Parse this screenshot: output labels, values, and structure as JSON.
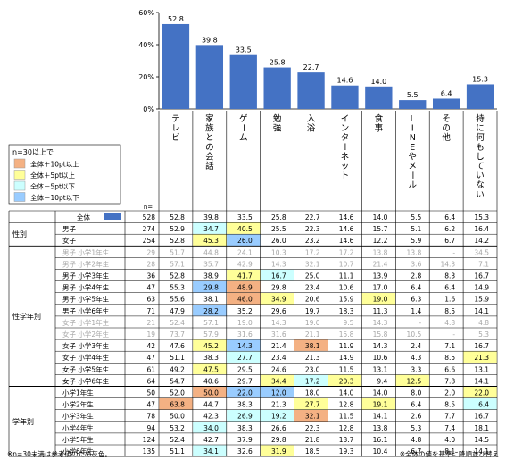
{
  "chart_data": {
    "type": "bar",
    "categories": [
      "テレビ",
      "家族との会話",
      "ゲーム",
      "勉強",
      "入浴",
      "インターネット",
      "食事",
      "LINEやメール",
      "その他",
      "特に何もしていない"
    ],
    "values": [
      52.8,
      39.8,
      33.5,
      25.8,
      22.7,
      14.6,
      14.0,
      5.5,
      6.4,
      15.3
    ],
    "ylim": [
      0,
      60
    ],
    "yticks": [
      "0%",
      "20%",
      "40%",
      "60%"
    ],
    "bar_color": "#4472C4",
    "n_label": "n=",
    "legend": {
      "title": "n=30以上で",
      "items": [
        {
          "label": "全体＋10pt以上",
          "color": "#F4B183"
        },
        {
          "label": "全体＋5pt以上",
          "color": "#FFFF99"
        },
        {
          "label": "全体－5pt以下",
          "color": "#CCFFFF"
        },
        {
          "label": "全体－10pt以下",
          "color": "#99CCFF"
        }
      ]
    },
    "table": [
      {
        "group": "",
        "label": "全体",
        "n": "528",
        "values": [
          "52.8",
          "39.8",
          "33.5",
          "25.8",
          "22.7",
          "14.6",
          "14.0",
          "5.5",
          "6.4",
          "15.3"
        ],
        "hl": [
          0,
          0,
          0,
          0,
          0,
          0,
          0,
          0,
          0,
          0
        ],
        "gray": false,
        "total": true
      },
      {
        "group": "性別",
        "label": "男子",
        "n": "274",
        "values": [
          "52.9",
          "34.7",
          "40.5",
          "25.5",
          "22.3",
          "14.6",
          "15.7",
          "5.1",
          "6.2",
          "16.4"
        ],
        "hl": [
          0,
          3,
          2,
          0,
          0,
          0,
          0,
          0,
          0,
          0
        ],
        "gray": false
      },
      {
        "group": "",
        "label": "女子",
        "n": "254",
        "values": [
          "52.8",
          "45.3",
          "26.0",
          "26.0",
          "23.2",
          "14.6",
          "12.2",
          "5.9",
          "6.7",
          "14.2"
        ],
        "hl": [
          0,
          2,
          4,
          0,
          0,
          0,
          0,
          0,
          0,
          0
        ],
        "gray": false
      },
      {
        "group": "",
        "label": "男子 小学1年生",
        "n": "29",
        "values": [
          "51.7",
          "44.8",
          "24.1",
          "10.3",
          "17.2",
          "17.2",
          "13.8",
          "13.8",
          "-",
          "34.5"
        ],
        "hl": [
          0,
          0,
          0,
          0,
          0,
          0,
          0,
          0,
          0,
          0
        ],
        "gray": true
      },
      {
        "group": "",
        "label": "男子 小学2年生",
        "n": "28",
        "values": [
          "57.1",
          "35.7",
          "42.9",
          "14.3",
          "32.1",
          "10.7",
          "21.4",
          "3.6",
          "14.3",
          "7.1"
        ],
        "hl": [
          0,
          0,
          0,
          0,
          0,
          0,
          0,
          0,
          0,
          0
        ],
        "gray": true
      },
      {
        "group": "",
        "label": "男子 小学3年生",
        "n": "36",
        "values": [
          "52.8",
          "38.9",
          "41.7",
          "16.7",
          "25.0",
          "11.1",
          "13.9",
          "2.8",
          "8.3",
          "16.7"
        ],
        "hl": [
          0,
          0,
          2,
          3,
          0,
          0,
          0,
          0,
          0,
          0
        ],
        "gray": false
      },
      {
        "group": "性学年別",
        "label": "男子 小学4年生",
        "n": "47",
        "values": [
          "55.3",
          "29.8",
          "48.9",
          "29.8",
          "23.4",
          "10.6",
          "17.0",
          "6.4",
          "6.4",
          "14.9"
        ],
        "hl": [
          0,
          4,
          1,
          0,
          0,
          0,
          0,
          0,
          0,
          0
        ],
        "gray": false
      },
      {
        "group": "",
        "label": "男子 小学5年生",
        "n": "63",
        "values": [
          "55.6",
          "38.1",
          "46.0",
          "34.9",
          "20.6",
          "15.9",
          "19.0",
          "6.3",
          "1.6",
          "15.9"
        ],
        "hl": [
          0,
          0,
          1,
          2,
          0,
          0,
          2,
          0,
          0,
          0
        ],
        "gray": false
      },
      {
        "group": "",
        "label": "男子 小学6年生",
        "n": "71",
        "values": [
          "47.9",
          "28.2",
          "35.2",
          "29.6",
          "19.7",
          "18.3",
          "11.3",
          "1.4",
          "8.5",
          "14.1"
        ],
        "hl": [
          0,
          4,
          0,
          0,
          0,
          0,
          0,
          0,
          0,
          0
        ],
        "gray": false
      },
      {
        "group": "",
        "label": "女子 小学1年生",
        "n": "21",
        "values": [
          "52.4",
          "57.1",
          "19.0",
          "14.3",
          "19.0",
          "9.5",
          "14.3",
          "-",
          "4.8",
          "4.8"
        ],
        "hl": [
          0,
          0,
          0,
          0,
          0,
          0,
          0,
          0,
          0,
          0
        ],
        "gray": true
      },
      {
        "group": "",
        "label": "女子 小学2年生",
        "n": "19",
        "values": [
          "73.7",
          "57.9",
          "31.6",
          "31.6",
          "21.1",
          "15.8",
          "15.8",
          "10.5",
          "-",
          "5.3"
        ],
        "hl": [
          0,
          0,
          0,
          0,
          0,
          0,
          0,
          0,
          0,
          0
        ],
        "gray": true
      },
      {
        "group": "",
        "label": "女子 小学3年生",
        "n": "42",
        "values": [
          "47.6",
          "45.2",
          "14.3",
          "21.4",
          "38.1",
          "11.9",
          "14.3",
          "2.4",
          "7.1",
          "16.7"
        ],
        "hl": [
          0,
          2,
          4,
          0,
          1,
          0,
          0,
          0,
          0,
          0
        ],
        "gray": false
      },
      {
        "group": "",
        "label": "女子 小学4年生",
        "n": "47",
        "values": [
          "51.1",
          "38.3",
          "27.7",
          "23.4",
          "21.3",
          "14.9",
          "10.6",
          "4.3",
          "8.5",
          "21.3"
        ],
        "hl": [
          0,
          0,
          3,
          0,
          0,
          0,
          0,
          0,
          0,
          2
        ],
        "gray": false
      },
      {
        "group": "",
        "label": "女子 小学5年生",
        "n": "61",
        "values": [
          "49.2",
          "47.5",
          "29.5",
          "24.6",
          "23.0",
          "11.5",
          "13.1",
          "3.3",
          "6.6",
          "13.1"
        ],
        "hl": [
          0,
          2,
          0,
          0,
          0,
          0,
          0,
          0,
          0,
          0
        ],
        "gray": false
      },
      {
        "group": "",
        "label": "女子 小学6年生",
        "n": "64",
        "values": [
          "54.7",
          "40.6",
          "29.7",
          "34.4",
          "17.2",
          "20.3",
          "9.4",
          "12.5",
          "7.8",
          "14.1"
        ],
        "hl": [
          0,
          0,
          0,
          2,
          3,
          2,
          0,
          2,
          0,
          0
        ],
        "gray": false
      },
      {
        "group": "",
        "label": "小学1年生",
        "n": "50",
        "values": [
          "52.0",
          "50.0",
          "22.0",
          "12.0",
          "18.0",
          "14.0",
          "14.0",
          "8.0",
          "2.0",
          "22.0"
        ],
        "hl": [
          0,
          1,
          4,
          4,
          0,
          0,
          0,
          0,
          0,
          2
        ],
        "gray": false
      },
      {
        "group": "",
        "label": "小学2年生",
        "n": "47",
        "values": [
          "63.8",
          "44.7",
          "38.3",
          "21.3",
          "27.7",
          "12.8",
          "19.1",
          "6.4",
          "8.5",
          "6.4"
        ],
        "hl": [
          1,
          0,
          0,
          0,
          2,
          0,
          2,
          0,
          0,
          3
        ],
        "gray": false
      },
      {
        "group": "学年別",
        "label": "小学3年生",
        "n": "78",
        "values": [
          "50.0",
          "42.3",
          "26.9",
          "19.2",
          "32.1",
          "11.5",
          "14.1",
          "2.6",
          "7.7",
          "16.7"
        ],
        "hl": [
          0,
          0,
          3,
          3,
          1,
          0,
          0,
          0,
          0,
          0
        ],
        "gray": false
      },
      {
        "group": "",
        "label": "小学4年生",
        "n": "94",
        "values": [
          "53.2",
          "34.0",
          "38.3",
          "26.6",
          "22.3",
          "12.8",
          "13.8",
          "5.3",
          "7.4",
          "18.1"
        ],
        "hl": [
          0,
          3,
          0,
          0,
          0,
          0,
          0,
          0,
          0,
          0
        ],
        "gray": false
      },
      {
        "group": "",
        "label": "小学5年生",
        "n": "124",
        "values": [
          "52.4",
          "42.7",
          "37.9",
          "29.8",
          "21.8",
          "13.7",
          "16.1",
          "4.8",
          "4.0",
          "14.5"
        ],
        "hl": [
          0,
          0,
          0,
          0,
          0,
          0,
          0,
          0,
          0,
          0
        ],
        "gray": false
      },
      {
        "group": "",
        "label": "小学6年生",
        "n": "135",
        "values": [
          "51.1",
          "34.1",
          "32.6",
          "31.9",
          "18.5",
          "19.3",
          "10.4",
          "6.7",
          "8.1",
          "14.1"
        ],
        "hl": [
          0,
          3,
          0,
          2,
          0,
          0,
          0,
          0,
          0,
          0
        ],
        "gray": false
      }
    ],
    "footnote_left": "※n=30未満は参考値のため灰色。",
    "footnote_right": "※全体の値を基準に降順並び替え"
  }
}
